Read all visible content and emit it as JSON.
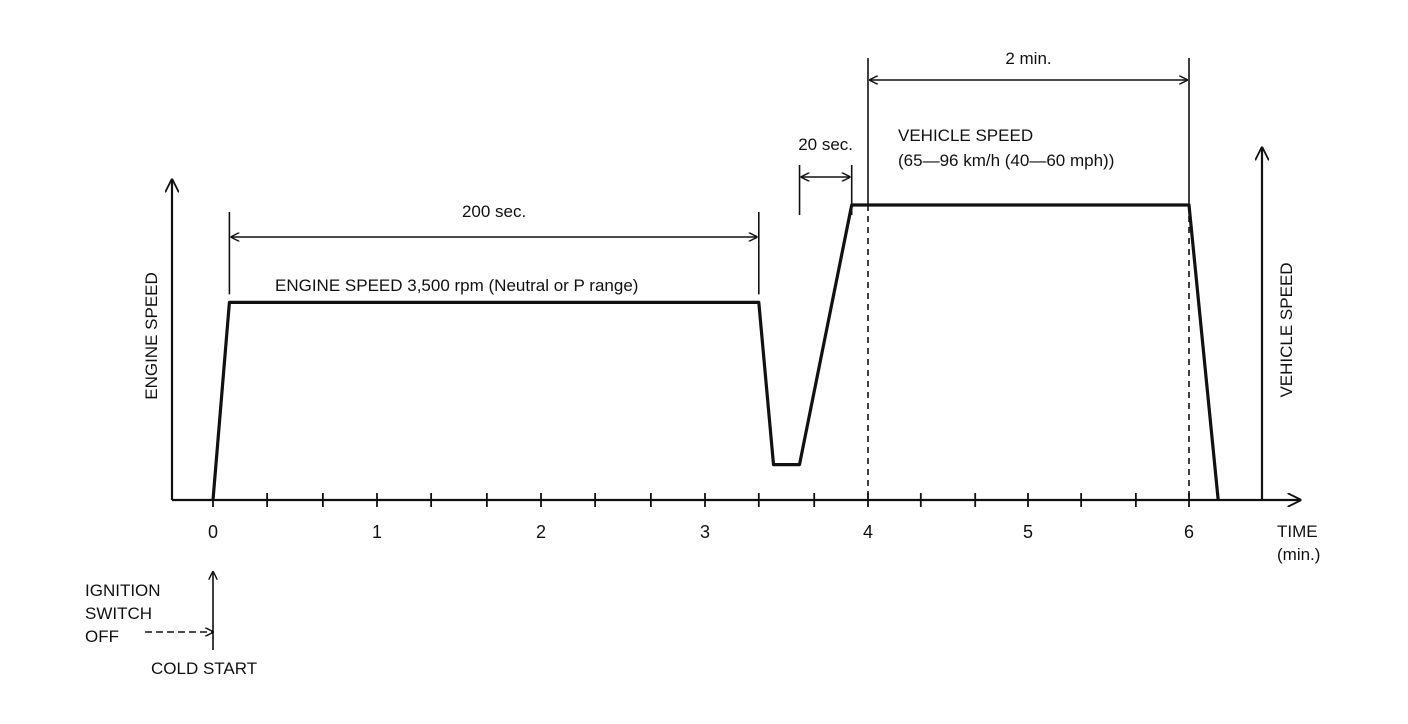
{
  "chart_data": {
    "type": "line",
    "xlabel": "TIME\n(min.)",
    "xlabel_lines": [
      "TIME",
      "(min.)"
    ],
    "ylabel_left": "ENGINE SPEED",
    "ylabel_right": "VEHICLE SPEED",
    "x_tick_labels": [
      {
        "x": 0,
        "label": "0"
      },
      {
        "x": 1,
        "label": "1"
      },
      {
        "x": 2,
        "label": "2"
      },
      {
        "x": 3,
        "label": "3"
      },
      {
        "x": 4,
        "label": "4"
      },
      {
        "x": 5,
        "label": "5"
      },
      {
        "x": 6,
        "label": "6"
      }
    ],
    "x_minor_ticks": [
      0.33,
      0.67,
      1.33,
      1.67,
      2.33,
      2.67,
      3.33,
      3.67,
      4.33,
      4.67,
      5.33,
      5.67
    ],
    "xlim": [
      0,
      6.5
    ],
    "ylim": [
      0,
      1
    ],
    "grid": false,
    "legend": "none",
    "series": [
      {
        "values_note": "",
        "x": [
          0,
          0.1,
          3.33,
          3.42,
          3.58,
          3.9,
          6.0,
          6.18
        ],
        "y": [
          0,
          0.67,
          0.67,
          0.12,
          0.12,
          1.0,
          1.0,
          0
        ]
      }
    ],
    "segments": {
      "engine_speed_label": "ENGINE SPEED 3,500 rpm (Neutral or P range)",
      "vehicle_speed_label_lines": [
        "VEHICLE SPEED",
        "(65—96 km/h (40—60 mph))"
      ]
    },
    "dimensions": [
      {
        "label": "200 sec.",
        "from": 0.1,
        "to": 3.33
      },
      {
        "label": "20 sec.",
        "from": 3.58,
        "to": 3.9
      },
      {
        "label": "2 min.",
        "from": 4.0,
        "to": 6.0
      }
    ],
    "reference_lines_x": [
      4.0,
      6.0
    ],
    "annotations": {
      "ignition_lines": [
        "IGNITION",
        "SWITCH",
        "OFF"
      ],
      "cold_start": "COLD START"
    }
  }
}
